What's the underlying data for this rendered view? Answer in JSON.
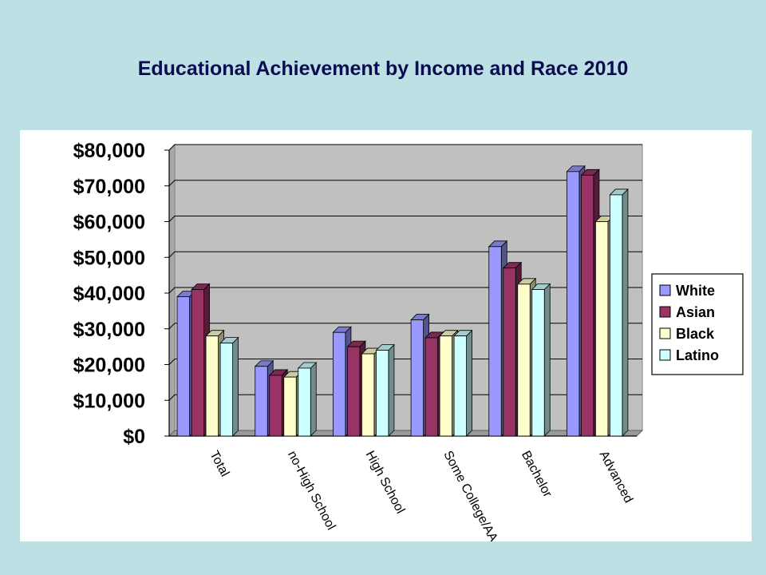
{
  "slide": {
    "title": "Educational Achievement by Income and Race 2010"
  },
  "chart_data": {
    "type": "bar",
    "title": "Educational Achievement by Income and Race 2010",
    "categories": [
      "Total",
      "no-High School",
      "High School",
      "Some College/AA",
      "Bachelor",
      "Advanced"
    ],
    "series": [
      {
        "name": "White",
        "color": "#9999ff",
        "values": [
          39000,
          19500,
          29000,
          32500,
          53000,
          74000
        ]
      },
      {
        "name": "Asian",
        "color": "#993366",
        "values": [
          41000,
          17000,
          25000,
          27500,
          47000,
          73000
        ]
      },
      {
        "name": "Black",
        "color": "#ffffcc",
        "values": [
          28000,
          16500,
          23000,
          28000,
          42500,
          60000
        ]
      },
      {
        "name": "Latino",
        "color": "#ccffff",
        "values": [
          26000,
          19000,
          24000,
          28000,
          41000,
          67500
        ]
      }
    ],
    "yticks": [
      "$0",
      "$10,000",
      "$20,000",
      "$30,000",
      "$40,000",
      "$50,000",
      "$60,000",
      "$70,000",
      "$80,000"
    ],
    "ylim": [
      0,
      80000
    ],
    "xlabel": "",
    "ylabel": "",
    "grid": true,
    "plot_background": "#c0c0c0",
    "legend_position": "right"
  }
}
